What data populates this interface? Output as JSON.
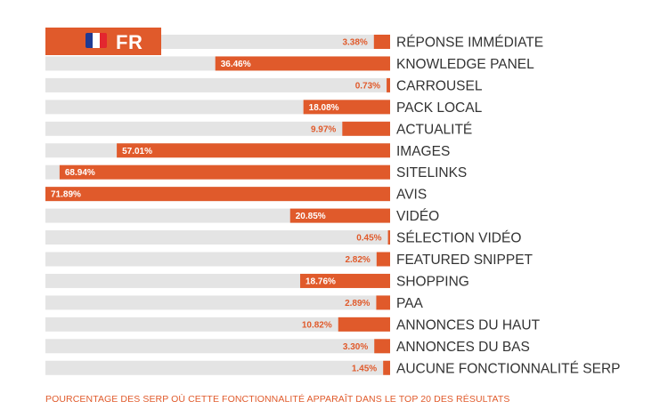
{
  "badge": {
    "country_code": "FR",
    "flag_colors": [
      "#1f3a93",
      "#ffffff",
      "#e3262f"
    ]
  },
  "colors": {
    "accent": "#e05a2b",
    "track": "#e4e4e4",
    "label": "#333333",
    "value_label": "#e05a2b"
  },
  "footnote": "POURCENTAGE DES SERP OÙ CETTE FONCTIONNALITÉ APPARAÎT DANS LE TOP 20 DES RÉSULTATS",
  "chart_data": {
    "type": "bar",
    "orientation": "horizontal",
    "direction": "right-to-left",
    "unit": "%",
    "xlim": [
      0,
      71.89
    ],
    "grid": false,
    "legend": "none",
    "categories": [
      "RÉPONSE IMMÉDIATE",
      "KNOWLEDGE PANEL",
      "CARROUSEL",
      "PACK LOCAL",
      "ACTUALITÉ",
      "IMAGES",
      "SITELINKS",
      "AVIS",
      "VIDÉO",
      "SÉLECTION VIDÉO",
      "FEATURED SNIPPET",
      "SHOPPING",
      "PAA",
      "ANNONCES DU HAUT",
      "ANNONCES DU BAS",
      "AUCUNE FONCTIONNALITÉ SERP"
    ],
    "values": [
      3.38,
      36.46,
      0.73,
      18.08,
      9.97,
      57.01,
      68.94,
      71.89,
      20.85,
      0.45,
      2.82,
      18.76,
      2.89,
      10.82,
      3.3,
      1.45
    ],
    "value_labels": [
      "3.38%",
      "36.46%",
      "0.73%",
      "18.08%",
      "9.97%",
      "57.01%",
      "68.94%",
      "71.89%",
      "20.85%",
      "0.45%",
      "2.82%",
      "18.76%",
      "2.89%",
      "10.82%",
      "3.30%",
      "1.45%"
    ]
  }
}
